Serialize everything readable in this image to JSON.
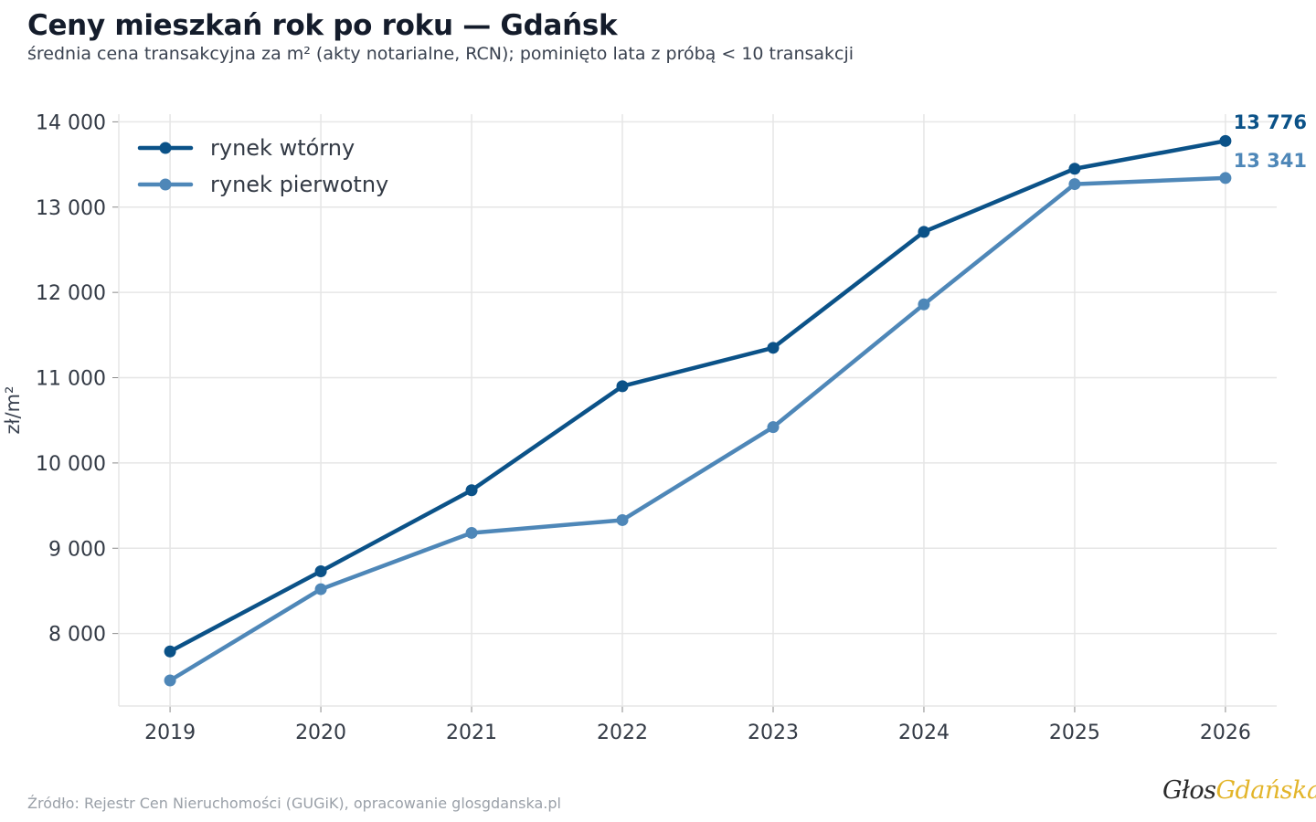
{
  "header": {
    "title": "Ceny mieszkań rok po roku — Gdańsk",
    "subtitle": "średnia cena transakcyjna za m² (akty notarialne, RCN); pominięto lata z próbą < 10 transakcji"
  },
  "footer": {
    "source": "Źródło: Rejestr Cen Nieruchomości (GUGiK), opracowanie glosgdanska.pl",
    "logo_part1": "Głos",
    "logo_part2": "Gdańska"
  },
  "colors": {
    "secondary": "#0b5288",
    "primary": "#4e87b8",
    "grid": "#e6e6e6"
  },
  "chart_data": {
    "type": "line",
    "title": "Ceny mieszkań rok po roku — Gdańsk",
    "xlabel": "",
    "ylabel": "zł/m²",
    "x": [
      2019,
      2020,
      2021,
      2022,
      2023,
      2024,
      2025,
      2026
    ],
    "xlim": [
      2018.66,
      2026.34
    ],
    "ylim": [
      7150,
      14090
    ],
    "yticks": [
      8000,
      9000,
      10000,
      11000,
      12000,
      13000,
      14000
    ],
    "ytick_labels": [
      "8 000",
      "9 000",
      "10 000",
      "11 000",
      "12 000",
      "13 000",
      "14 000"
    ],
    "grid": true,
    "legend_position": "top-left",
    "series": [
      {
        "name": "rynek wtórny",
        "color": "#0b5288",
        "values": [
          7790,
          8730,
          9680,
          10900,
          11350,
          12710,
          13450,
          13776
        ],
        "end_label": "13 776"
      },
      {
        "name": "rynek pierwotny",
        "color": "#4e87b8",
        "values": [
          7450,
          8520,
          9180,
          9330,
          10420,
          11860,
          13270,
          13341
        ],
        "end_label": "13 341"
      }
    ]
  }
}
